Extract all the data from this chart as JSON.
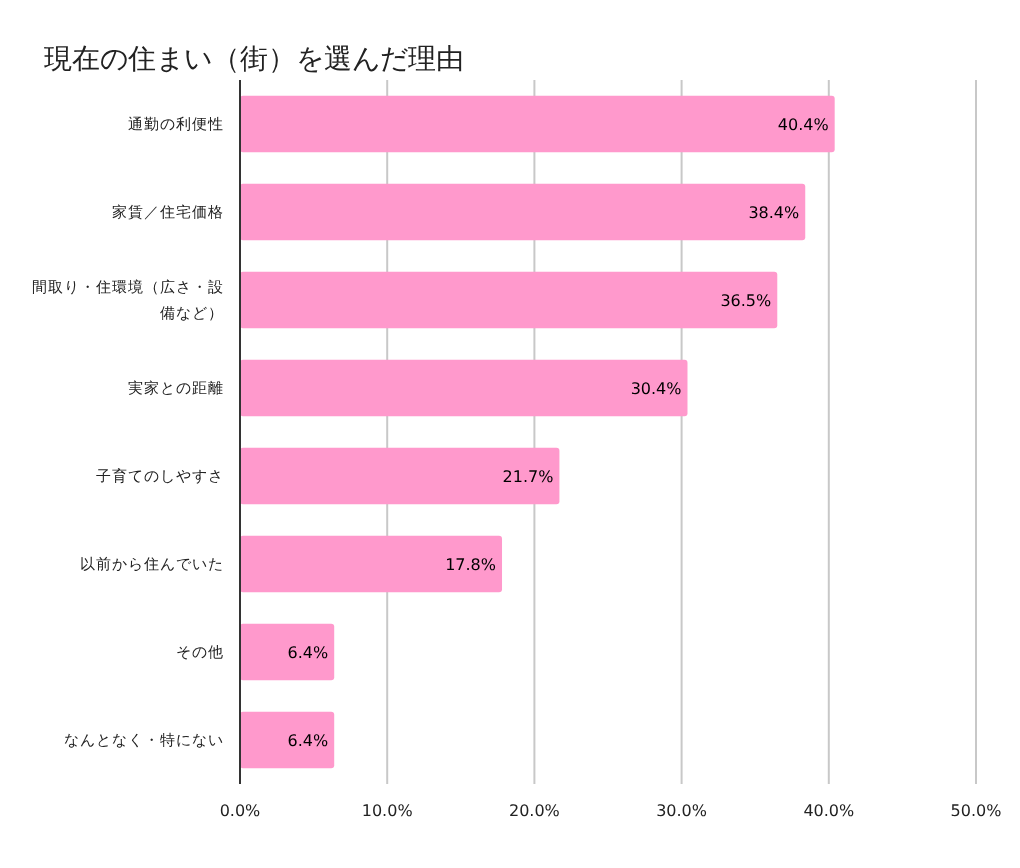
{
  "chart_data": {
    "type": "bar",
    "orientation": "horizontal",
    "title": "現在の住まい（街）を選んだ理由",
    "categories": [
      "通勤の利便性",
      "家賃／住宅価格",
      "間取り・住環境（広さ・設備など）",
      "実家との距離",
      "子育てのしやすさ",
      "以前から住んでいた",
      "その他",
      "なんとなく・特にない"
    ],
    "values": [
      40.4,
      38.4,
      36.5,
      30.4,
      21.7,
      17.8,
      6.4,
      6.4
    ],
    "value_labels": [
      "40.4%",
      "38.4%",
      "36.5%",
      "30.4%",
      "21.7%",
      "17.8%",
      "6.4%",
      "6.4%"
    ],
    "color": "#ff99cc",
    "xlim": [
      0,
      50
    ],
    "xticks": [
      {
        "value": 0,
        "label": "0.0%"
      },
      {
        "value": 10,
        "label": "10.0%"
      },
      {
        "value": 20,
        "label": "20.0%"
      },
      {
        "value": 30,
        "label": "30.0%"
      },
      {
        "value": 40,
        "label": "40.0%"
      },
      {
        "value": 50,
        "label": "50.0%"
      }
    ],
    "grid": "x"
  }
}
